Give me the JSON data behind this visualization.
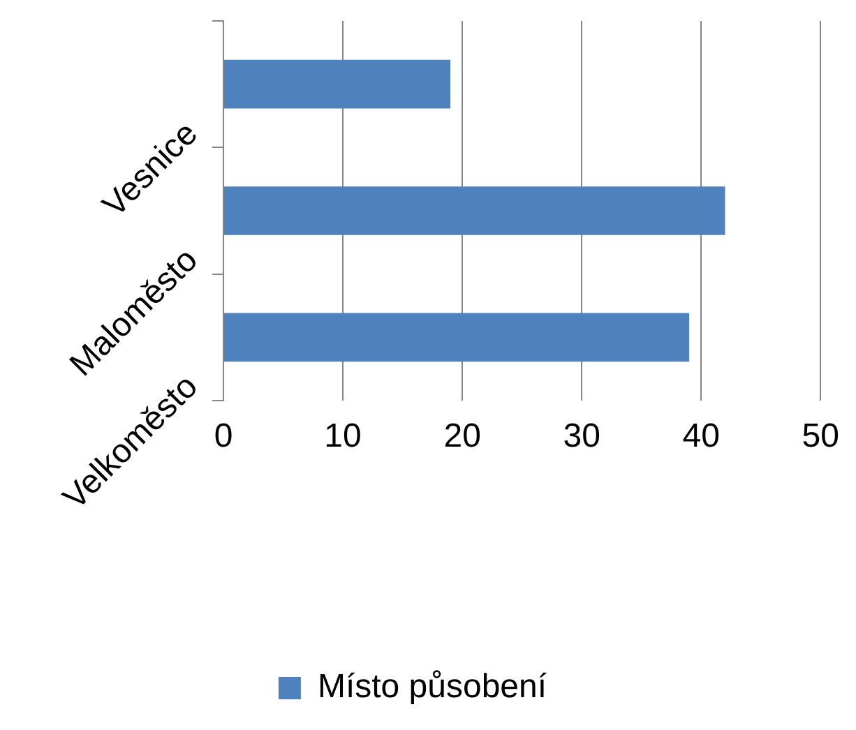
{
  "chart_data": {
    "type": "bar",
    "orientation": "horizontal",
    "categories": [
      "Vesnice",
      "Maloměsto",
      "Velkoměsto"
    ],
    "series": [
      {
        "name": "Místo působení",
        "color": "#4f81bd",
        "values": [
          19,
          42,
          39
        ]
      }
    ],
    "xlim": [
      0,
      50
    ],
    "xticks": [
      0,
      10,
      20,
      30,
      40,
      50
    ],
    "grid": "x",
    "legend": "bottom"
  }
}
